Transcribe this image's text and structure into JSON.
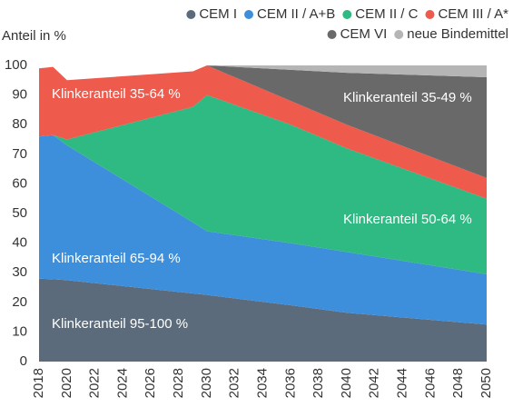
{
  "chart_data": {
    "type": "stacked_area",
    "y_label": "Anteil in %",
    "x": [
      2018,
      2019,
      2020,
      2029,
      2030,
      2036,
      2040,
      2050
    ],
    "xlim": [
      2018,
      2050
    ],
    "xticks": [
      2018,
      2020,
      2022,
      2024,
      2026,
      2028,
      2030,
      2032,
      2034,
      2036,
      2038,
      2040,
      2042,
      2044,
      2046,
      2048,
      2050
    ],
    "ylim": [
      0,
      100
    ],
    "yticks": [
      0,
      10,
      20,
      30,
      40,
      50,
      60,
      70,
      80,
      90,
      100
    ],
    "grid": false,
    "legend": "top-right",
    "series": [
      {
        "name": "CEM I",
        "color": "#5b6b7c",
        "values": [
          28,
          27.8,
          27.5,
          23,
          22.5,
          19,
          16.5,
          12.5
        ]
      },
      {
        "name": "CEM II / A+B",
        "color": "#3d8fdb",
        "values": [
          48,
          48.7,
          45.5,
          24,
          21.5,
          21,
          20.5,
          17
        ]
      },
      {
        "name": "CEM II / C",
        "color": "#2fba83",
        "values": [
          0,
          0,
          2,
          39,
          46,
          40,
          35,
          25.5
        ]
      },
      {
        "name": "CEM III / A*",
        "color": "#ee5a4b",
        "values": [
          23,
          23,
          20,
          12,
          10,
          8,
          8,
          7
        ]
      },
      {
        "name": "CEM VI",
        "color": "#696969",
        "values": [
          0,
          0,
          0,
          0,
          0,
          10.5,
          17.5,
          34
        ]
      },
      {
        "name": "neue Bindemittel",
        "color": "#b5b5b5",
        "values": [
          0,
          0,
          0,
          0,
          0,
          1.5,
          2.5,
          4
        ]
      }
    ],
    "annotations": [
      "Klinkeranteil 35-64 %",
      "Klinkeranteil 35-49 %",
      "Klinkeranteil 50-64 %",
      "Klinkeranteil 65-94 %",
      "Klinkeranteil 95-100 %"
    ]
  }
}
